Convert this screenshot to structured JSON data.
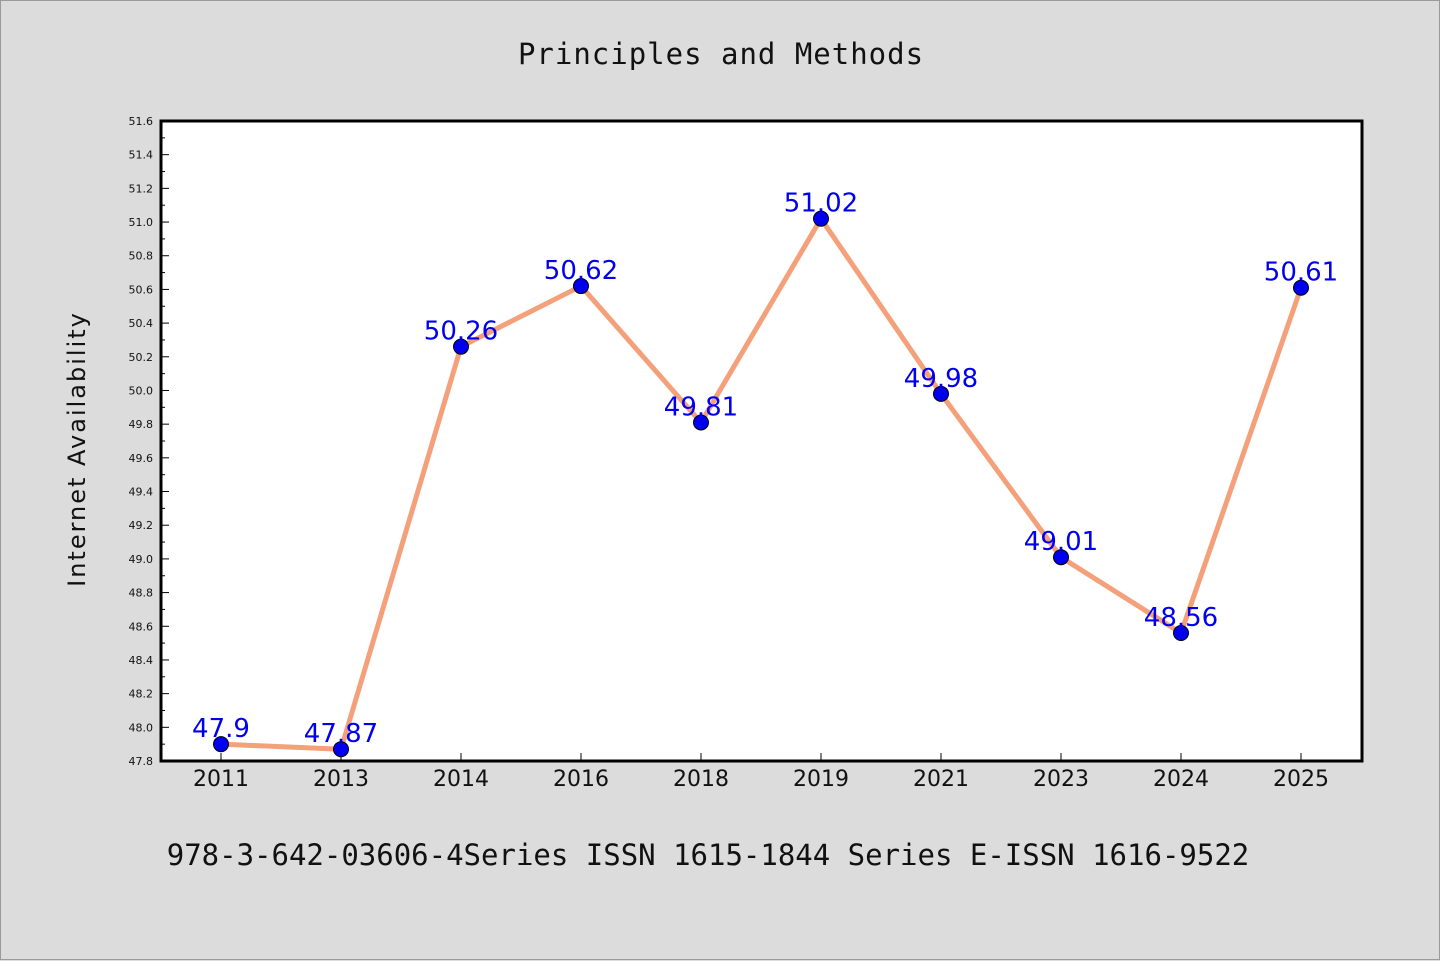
{
  "chart_data": {
    "type": "line",
    "title": "Principles and Methods",
    "ylabel": "Internet Availability",
    "xlabel": "",
    "categories": [
      "2011",
      "2013",
      "2014",
      "2016",
      "2018",
      "2019",
      "2021",
      "2023",
      "2024",
      "2025"
    ],
    "series": [
      {
        "values": [
          47.9,
          47.87,
          50.26,
          50.62,
          49.81,
          51.02,
          49.98,
          49.01,
          48.56,
          50.61
        ],
        "data_labels": [
          "47.9",
          "47.87",
          "50.26",
          "50.62",
          "49.81",
          "51.02",
          "49.98",
          "49.01",
          "48.56",
          "50.61"
        ],
        "line_color": "#f4a07a",
        "marker_color": "#0000ee"
      }
    ],
    "ylim": [
      47.8,
      51.6
    ],
    "yticks": [
      "47.8",
      "48.0",
      "48.2",
      "48.4",
      "48.6",
      "48.8",
      "49.0",
      "49.2",
      "49.4",
      "49.6",
      "49.8",
      "50.0",
      "50.2",
      "50.4",
      "50.6",
      "50.8",
      "51.0",
      "51.2",
      "51.4",
      "51.6"
    ],
    "grid": false,
    "legend": "none"
  },
  "caption": "978-3-642-03606-4Series ISSN 1615-1844 Series E-ISSN 1616-9522",
  "colors": {
    "background": "#dcdcdc",
    "plot_background": "#ffffff",
    "axis": "#000000"
  }
}
